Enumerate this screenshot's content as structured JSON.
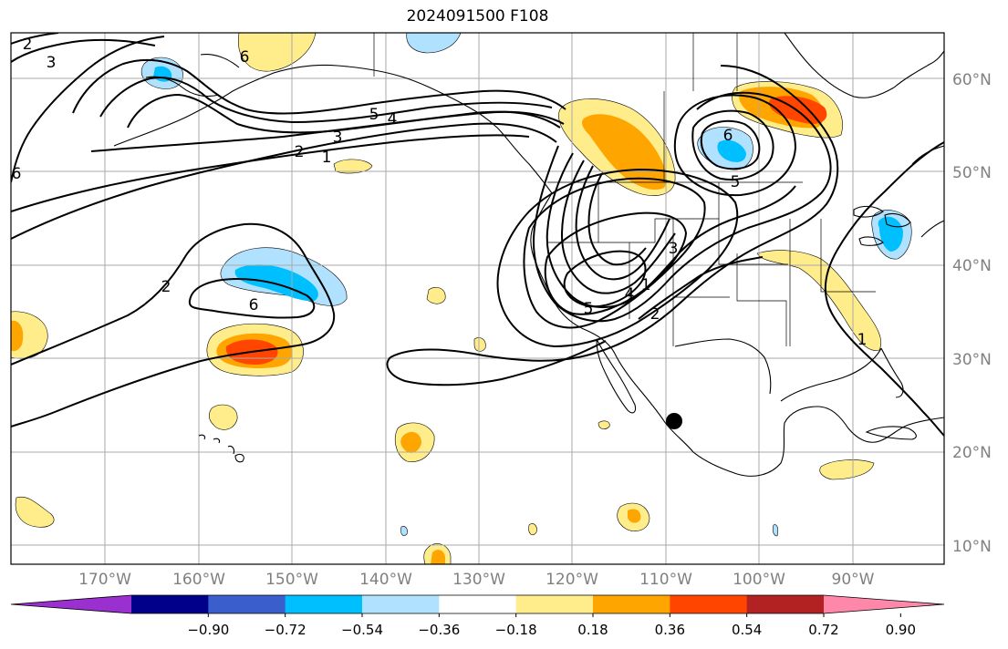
{
  "title": "2024091500 F108",
  "lon_labels": [
    "170°W",
    "160°W",
    "150°W",
    "140°W",
    "130°W",
    "120°W",
    "110°W",
    "100°W",
    "90°W"
  ],
  "lat_labels": [
    "60°N",
    "50°N",
    "40°N",
    "30°N",
    "20°N",
    "10°N"
  ],
  "colorbar": {
    "tick_labels": [
      "−0.90",
      "−0.72",
      "−0.54",
      "−0.36",
      "−0.18",
      "0.18",
      "0.36",
      "0.54",
      "0.72",
      "0.90"
    ],
    "colors": [
      "#9b30d0",
      "#00008b",
      "#3a5fcd",
      "#00bfff",
      "#b0e2ff",
      "#ffffff",
      "#ffec8b",
      "#ffa500",
      "#ff4500",
      "#b22222",
      "#ff88aa"
    ]
  },
  "contour_labels": [
    "3",
    "2",
    "6",
    "6",
    "5",
    "4",
    "3",
    "2",
    "1",
    "2",
    "6",
    "5",
    "4",
    "3",
    "1",
    "2",
    "6",
    "5",
    "1"
  ],
  "colors": {
    "grid": "#a9a9a9",
    "coast": "#000000",
    "contour": "#000000",
    "axis_text": "#808080"
  }
}
